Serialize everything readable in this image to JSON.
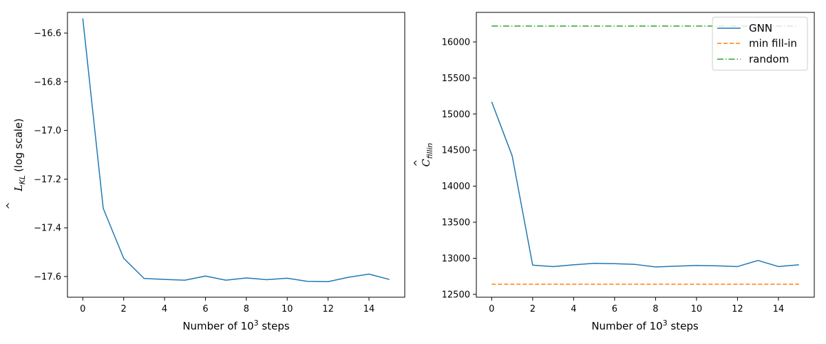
{
  "chart_data": [
    {
      "type": "line",
      "xlabel_main": "Number of 10",
      "xlabel_sup": "3",
      "xlabel_tail": " steps",
      "ylabel_main": "L",
      "ylabel_sub": "KL",
      "ylabel_tail": " (log scale)",
      "xlim": [
        -0.75,
        15.75
      ],
      "ylim": [
        -17.685,
        -16.515
      ],
      "xticks": [
        0,
        2,
        4,
        6,
        8,
        10,
        12,
        14
      ],
      "xtick_labels": [
        "0",
        "2",
        "4",
        "6",
        "8",
        "10",
        "12",
        "14"
      ],
      "yticks": [
        -16.6,
        -16.8,
        -17.0,
        -17.2,
        -17.4,
        -17.6
      ],
      "ytick_labels": [
        "−16.6",
        "−16.8",
        "−17.0",
        "−17.2",
        "−17.4",
        "−17.6"
      ],
      "series": [
        {
          "color": "#1f77b4",
          "dash": "solid",
          "x": [
            0,
            1,
            2,
            3,
            4,
            5,
            6,
            7,
            8,
            9,
            10,
            11,
            12,
            13,
            14,
            15
          ],
          "y": [
            -16.54,
            -17.32,
            -17.525,
            -17.608,
            -17.612,
            -17.615,
            -17.598,
            -17.615,
            -17.606,
            -17.613,
            -17.607,
            -17.62,
            -17.621,
            -17.603,
            -17.59,
            -17.612
          ]
        }
      ]
    },
    {
      "type": "line",
      "xlabel_main": "Number of 10",
      "xlabel_sup": "3",
      "xlabel_tail": " steps",
      "ylabel_main": "C",
      "ylabel_sub": "fillin",
      "xlim": [
        -0.75,
        15.75
      ],
      "ylim": [
        12460,
        16410
      ],
      "xticks": [
        0,
        2,
        4,
        6,
        8,
        10,
        12,
        14
      ],
      "xtick_labels": [
        "0",
        "2",
        "4",
        "6",
        "8",
        "10",
        "12",
        "14"
      ],
      "yticks": [
        12500,
        13000,
        13500,
        14000,
        14500,
        15000,
        15500,
        16000
      ],
      "ytick_labels": [
        "12500",
        "13000",
        "13500",
        "14000",
        "14500",
        "15000",
        "15500",
        "16000"
      ],
      "legend_position": "top-right",
      "series": [
        {
          "name": "GNN",
          "color": "#1f77b4",
          "dash": "solid",
          "x": [
            0,
            1,
            2,
            3,
            4,
            5,
            6,
            7,
            8,
            9,
            10,
            11,
            12,
            13,
            14,
            15
          ],
          "y": [
            15170,
            14420,
            12905,
            12885,
            12910,
            12930,
            12925,
            12915,
            12880,
            12890,
            12900,
            12895,
            12885,
            12970,
            12885,
            12910
          ]
        },
        {
          "name": "min fill-in",
          "color": "#ff7f0e",
          "dash": "dashed",
          "x": [
            0,
            15
          ],
          "y": [
            12640,
            12640
          ]
        },
        {
          "name": "random",
          "color": "#2ca02c",
          "dash": "dashdot",
          "x": [
            0,
            15
          ],
          "y": [
            16220,
            16220
          ]
        }
      ]
    }
  ]
}
